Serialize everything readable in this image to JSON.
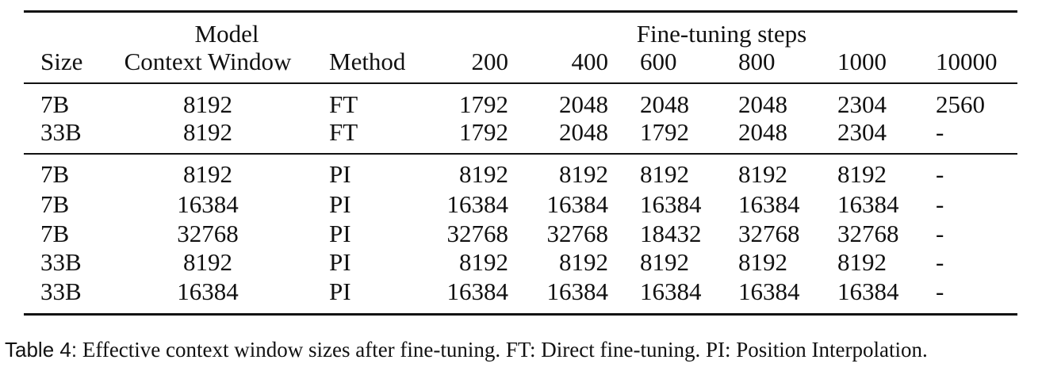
{
  "table": {
    "header_top": {
      "model": "Model",
      "fine_tuning_steps": "Fine-tuning steps"
    },
    "header": {
      "size": "Size",
      "context_window": "Context Window",
      "method": "Method",
      "steps": [
        "200",
        "400",
        "600",
        "800",
        "1000",
        "10000"
      ]
    },
    "rows": [
      {
        "size": "7B",
        "context": "8192",
        "method": "FT",
        "values": [
          "1792",
          "2048",
          "2048",
          "2048",
          "2304",
          "2560"
        ]
      },
      {
        "size": "33B",
        "context": "8192",
        "method": "FT",
        "values": [
          "1792",
          "2048",
          "1792",
          "2048",
          "2304",
          "-"
        ]
      },
      {
        "size": "7B",
        "context": "8192",
        "method": "PI",
        "values": [
          "8192",
          "8192",
          "8192",
          "8192",
          "8192",
          "-"
        ]
      },
      {
        "size": "7B",
        "context": "16384",
        "method": "PI",
        "values": [
          "16384",
          "16384",
          "16384",
          "16384",
          "16384",
          "-"
        ]
      },
      {
        "size": "7B",
        "context": "32768",
        "method": "PI",
        "values": [
          "32768",
          "32768",
          "18432",
          "32768",
          "32768",
          "-"
        ]
      },
      {
        "size": "33B",
        "context": "8192",
        "method": "PI",
        "values": [
          "8192",
          "8192",
          "8192",
          "8192",
          "8192",
          "-"
        ]
      },
      {
        "size": "33B",
        "context": "16384",
        "method": "PI",
        "values": [
          "16384",
          "16384",
          "16384",
          "16384",
          "16384",
          "-"
        ]
      }
    ]
  },
  "caption": {
    "label": "Table 4:",
    "text": "Effective context window sizes after fine-tuning. FT: Direct fine-tuning. PI: Position Interpolation."
  }
}
